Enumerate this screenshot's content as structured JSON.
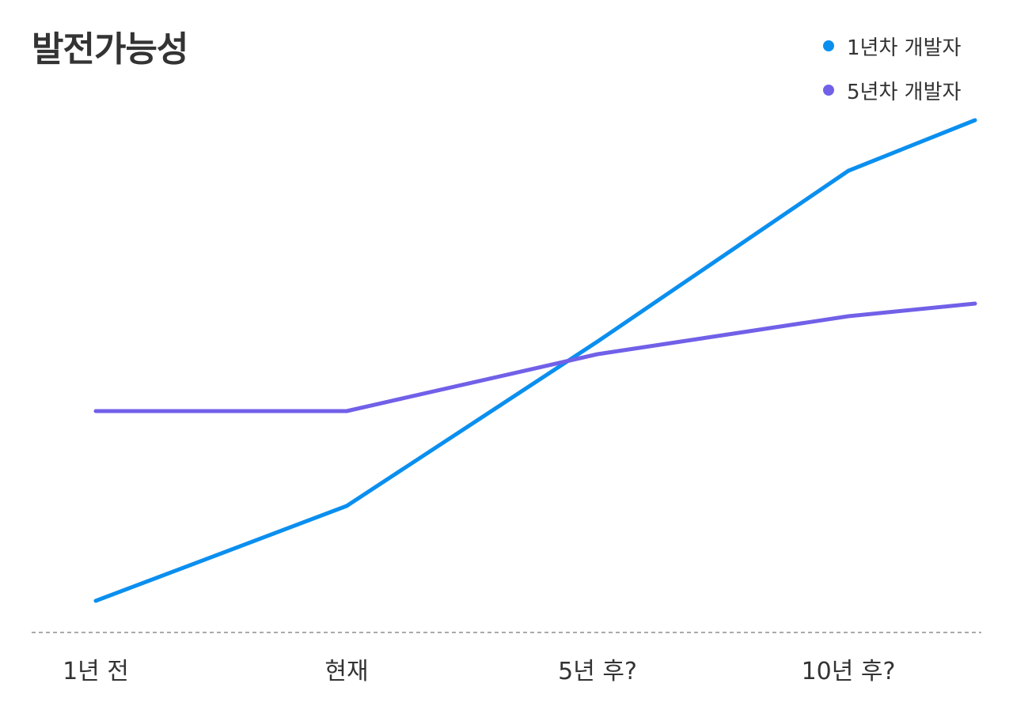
{
  "chart_data": {
    "type": "line",
    "title": "발전가능성",
    "categories": [
      "1년 전",
      "현재",
      "5년 후?",
      "10년 후?",
      ""
    ],
    "series": [
      {
        "name": "1년차 개발자",
        "color": "#0a8fef",
        "values": [
          5,
          20,
          46,
          73,
          81
        ]
      },
      {
        "name": "5년차 개발자",
        "color": "#7160e8",
        "values": [
          35,
          35,
          44,
          50,
          52
        ]
      }
    ],
    "ylim": [
      0,
      100
    ],
    "grid": "vertical",
    "legend": "top-right",
    "xlabel": "",
    "ylabel": ""
  }
}
